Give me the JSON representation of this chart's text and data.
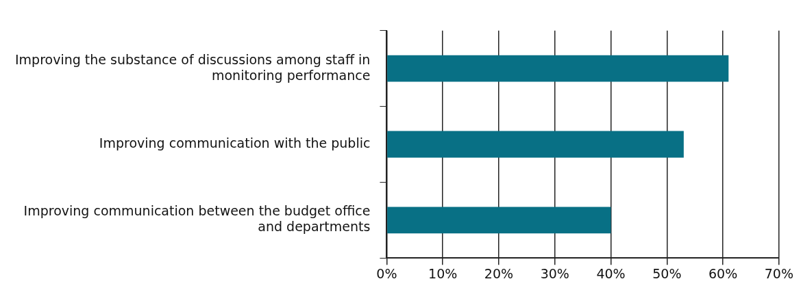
{
  "chart_data": {
    "type": "bar",
    "orientation": "horizontal",
    "categories": [
      "Improving the substance of discussions among staff in monitoring performance",
      "Improving communication with the public",
      "Improving communication between the budget office and departments"
    ],
    "values": [
      61,
      53,
      40
    ],
    "color": "#087085",
    "xlim": [
      0,
      70
    ],
    "xticks": [
      {
        "value": 0,
        "label": "0%"
      },
      {
        "value": 10,
        "label": "10%"
      },
      {
        "value": 20,
        "label": "20%"
      },
      {
        "value": 30,
        "label": "30%"
      },
      {
        "value": 40,
        "label": "40%"
      },
      {
        "value": 50,
        "label": "50%"
      },
      {
        "value": 60,
        "label": "60%"
      },
      {
        "value": 70,
        "label": "70%"
      }
    ],
    "grid": "x"
  }
}
